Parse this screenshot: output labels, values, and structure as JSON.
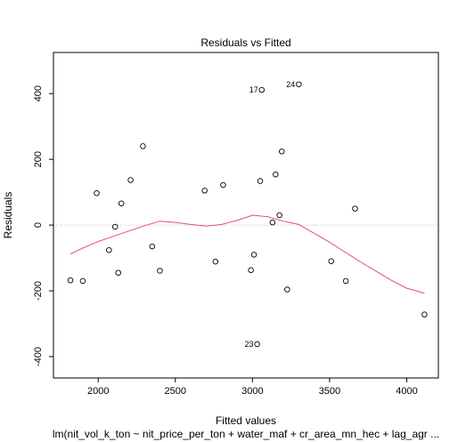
{
  "chart_data": {
    "type": "scatter",
    "title": "Residuals vs Fitted",
    "xlabel": "Fitted values",
    "ylabel": "Residuals",
    "subtitle": "lm(nit_vol_k_ton ~ nit_price_per_ton + water_maf + cr_area_mn_hec + lag_agr ...",
    "xlim": [
      1710,
      4205
    ],
    "ylim": [
      -465,
      525
    ],
    "x_ticks": [
      2000,
      2500,
      3000,
      3500,
      4000
    ],
    "y_ticks": [
      -400,
      -200,
      0,
      200,
      400
    ],
    "x_tick_labels": [
      "2000",
      "2500",
      "3000",
      "3500",
      "4000"
    ],
    "y_tick_labels": [
      "-400",
      "-200",
      "0",
      "200",
      "400"
    ],
    "grid": false,
    "reference_line_y": 0,
    "points": [
      {
        "x": 1820,
        "y": -168
      },
      {
        "x": 1900,
        "y": -170
      },
      {
        "x": 1990,
        "y": 97
      },
      {
        "x": 2070,
        "y": -76
      },
      {
        "x": 2110,
        "y": -5
      },
      {
        "x": 2130,
        "y": -145
      },
      {
        "x": 2150,
        "y": 66
      },
      {
        "x": 2210,
        "y": 137
      },
      {
        "x": 2290,
        "y": 240
      },
      {
        "x": 2350,
        "y": -65
      },
      {
        "x": 2400,
        "y": -139
      },
      {
        "x": 2690,
        "y": 105
      },
      {
        "x": 2760,
        "y": -111
      },
      {
        "x": 2810,
        "y": 122
      },
      {
        "x": 2990,
        "y": -137
      },
      {
        "x": 3010,
        "y": -90
      },
      {
        "x": 3030,
        "y": -362
      },
      {
        "x": 3050,
        "y": 134
      },
      {
        "x": 3060,
        "y": 411
      },
      {
        "x": 3130,
        "y": 8
      },
      {
        "x": 3150,
        "y": 154
      },
      {
        "x": 3175,
        "y": 30
      },
      {
        "x": 3190,
        "y": 224
      },
      {
        "x": 3225,
        "y": -196
      },
      {
        "x": 3300,
        "y": 428
      },
      {
        "x": 3510,
        "y": -110
      },
      {
        "x": 3605,
        "y": -170
      },
      {
        "x": 3665,
        "y": 50
      },
      {
        "x": 4115,
        "y": -272
      }
    ],
    "smooth_line": {
      "x": [
        1820,
        1900,
        2000,
        2100,
        2200,
        2300,
        2400,
        2500,
        2600,
        2700,
        2800,
        2900,
        3000,
        3100,
        3200,
        3300,
        3400,
        3500,
        3600,
        3700,
        3800,
        3900,
        4000,
        4115
      ],
      "y": [
        -88,
        -70,
        -50,
        -34,
        -18,
        -2,
        12,
        8,
        2,
        -3,
        2,
        14,
        30,
        25,
        12,
        2,
        -25,
        -52,
        -82,
        -112,
        -140,
        -168,
        -192,
        -207
      ]
    },
    "point_labels": [
      {
        "text": "17",
        "x": 3060,
        "y": 411
      },
      {
        "text": "24",
        "x": 3300,
        "y": 428
      },
      {
        "text": "23",
        "x": 3030,
        "y": -362
      }
    ],
    "colors": {
      "points": "#000000",
      "smooth": "#DF536B",
      "reference": "#BEBEBE"
    }
  }
}
